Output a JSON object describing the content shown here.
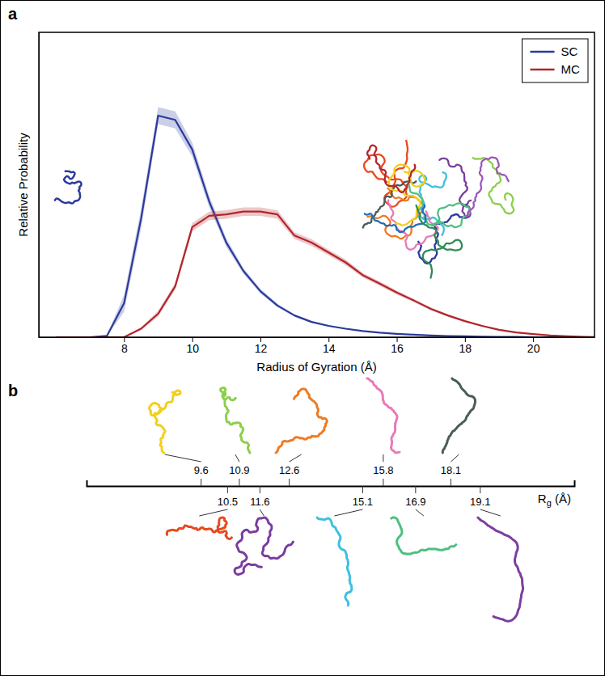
{
  "chart_data": [
    {
      "type": "line",
      "panel": "a",
      "xlabel": "Radius of Gyration (Å)",
      "ylabel": "Relative Probability",
      "x": [
        6,
        6.5,
        7,
        7.5,
        8,
        8.5,
        9,
        9.5,
        10,
        10.5,
        11,
        11.5,
        12,
        12.5,
        13,
        13.5,
        14,
        14.5,
        15,
        15.5,
        16,
        16.5,
        17,
        17.5,
        18,
        18.5,
        19,
        19.5,
        20,
        20.5,
        21,
        21.5,
        22
      ],
      "series": [
        {
          "name": "SC",
          "color": "#2b3a9c",
          "values": [
            0,
            0,
            0,
            0.005,
            0.12,
            0.42,
            0.785,
            0.77,
            0.665,
            0.48,
            0.335,
            0.235,
            0.163,
            0.112,
            0.077,
            0.054,
            0.04,
            0.03,
            0.022,
            0.016,
            0.012,
            0.009,
            0.006,
            0.004,
            0.003,
            0.002,
            0.001,
            0.001,
            0,
            0,
            0,
            0,
            0
          ],
          "errors": [
            0,
            0,
            0,
            0.002,
            0.03,
            0.035,
            0.03,
            0.03,
            0.025,
            0.02,
            0.015,
            0.01,
            0.008,
            0.006,
            0.004,
            0.003,
            0.002,
            0.002,
            0.001,
            0.001,
            0.001,
            0.001,
            0,
            0,
            0,
            0,
            0,
            0,
            0,
            0,
            0,
            0,
            0
          ]
        },
        {
          "name": "MC",
          "color": "#b3252b",
          "values": [
            0,
            0,
            0,
            0,
            0,
            0.03,
            0.083,
            0.18,
            0.39,
            0.43,
            0.435,
            0.445,
            0.445,
            0.435,
            0.36,
            0.335,
            0.3,
            0.265,
            0.22,
            0.19,
            0.158,
            0.13,
            0.1,
            0.077,
            0.057,
            0.04,
            0.026,
            0.017,
            0.011,
            0.006,
            0.003,
            0.001,
            0
          ],
          "errors": [
            0,
            0,
            0,
            0,
            0,
            0.005,
            0.01,
            0.012,
            0.015,
            0.015,
            0.015,
            0.015,
            0.015,
            0.015,
            0.012,
            0.012,
            0.01,
            0.01,
            0.008,
            0.008,
            0.007,
            0.006,
            0.005,
            0.004,
            0.003,
            0.003,
            0.002,
            0.002,
            0.001,
            0.001,
            0,
            0,
            0
          ]
        }
      ],
      "xlim": [
        5.5,
        21.8
      ],
      "xticks": [
        8,
        10,
        12,
        14,
        16,
        18,
        20
      ],
      "ylim": [
        0,
        1.08
      ],
      "legend": "upper right",
      "tick_labels": "x"
    },
    {
      "type": "strip",
      "panel": "b",
      "xlabel": "Rg (Å)",
      "values": [
        9.6,
        10.5,
        10.9,
        11.6,
        12.6,
        15.1,
        15.8,
        16.9,
        18.1,
        19.1
      ],
      "colors": [
        "#f2cf1d",
        "#e84a1d",
        "#8ccf4c",
        "#7a3d9e",
        "#ef7a22",
        "#3fbfe0",
        "#e87ab8",
        "#4fbf80",
        "#4b5b59",
        "#7c3f9d"
      ],
      "xlim": [
        5.7,
        22.3
      ],
      "data_labels": true
    }
  ]
}
